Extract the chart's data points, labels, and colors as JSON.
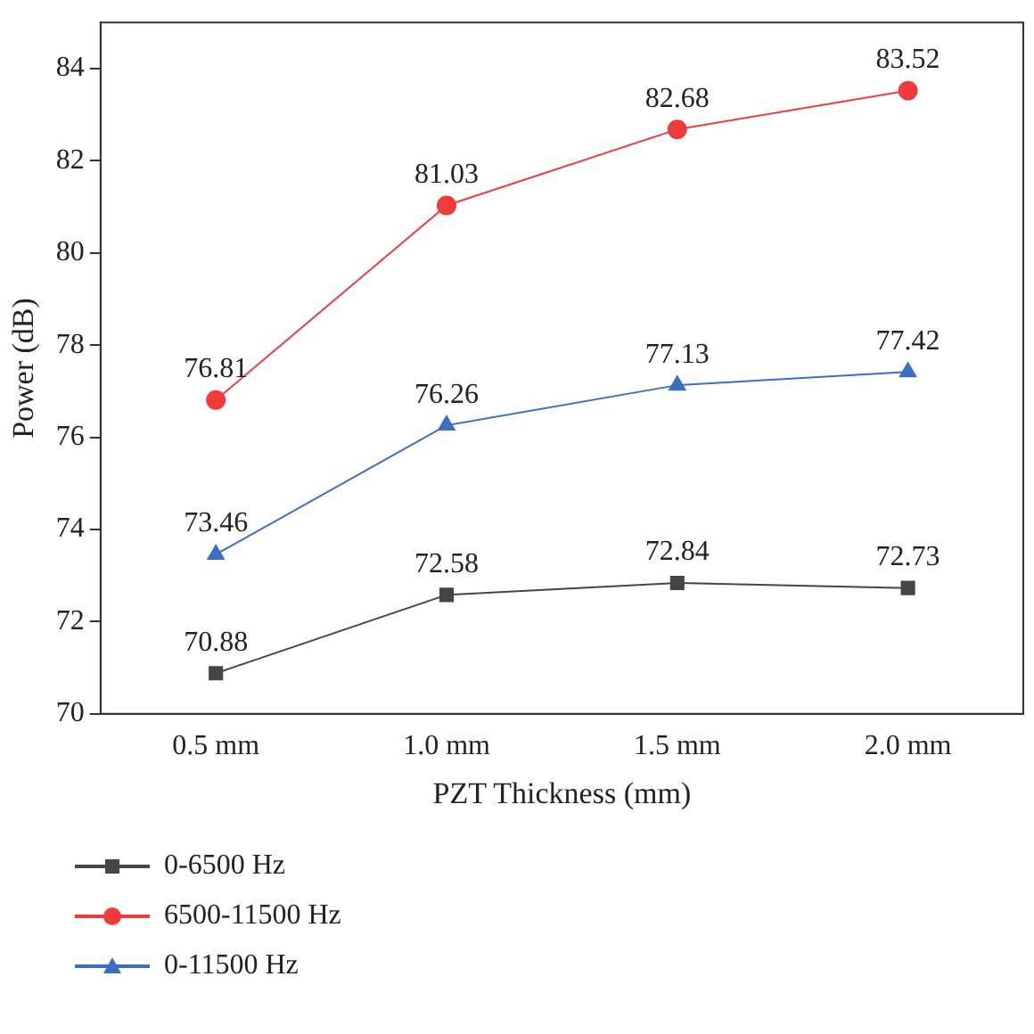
{
  "chart_data": {
    "type": "line",
    "xlabel": "PZT Thickness (mm)",
    "ylabel": "Power (dB)",
    "categories": [
      "0.5 mm",
      "1.0 mm",
      "1.5 mm",
      "2.0 mm"
    ],
    "series": [
      {
        "name": "0-6500 Hz",
        "color": "#454545",
        "values": [
          70.88,
          72.58,
          72.84,
          72.73
        ],
        "marker": "square"
      },
      {
        "name": "6500-11500 Hz",
        "color": "#f03b3b",
        "values": [
          76.81,
          81.03,
          82.68,
          83.52
        ],
        "marker": "circle"
      },
      {
        "name": "0-11500 Hz",
        "color": "#3b6fc4",
        "values": [
          73.46,
          76.26,
          77.13,
          77.42
        ],
        "marker": "triangle"
      }
    ],
    "ylim": [
      70,
      85
    ],
    "yticks": [
      70,
      72,
      74,
      76,
      78,
      80,
      82,
      84
    ],
    "grid": false,
    "legend": "bottom",
    "data_labels": true,
    "line_style": "solid"
  }
}
